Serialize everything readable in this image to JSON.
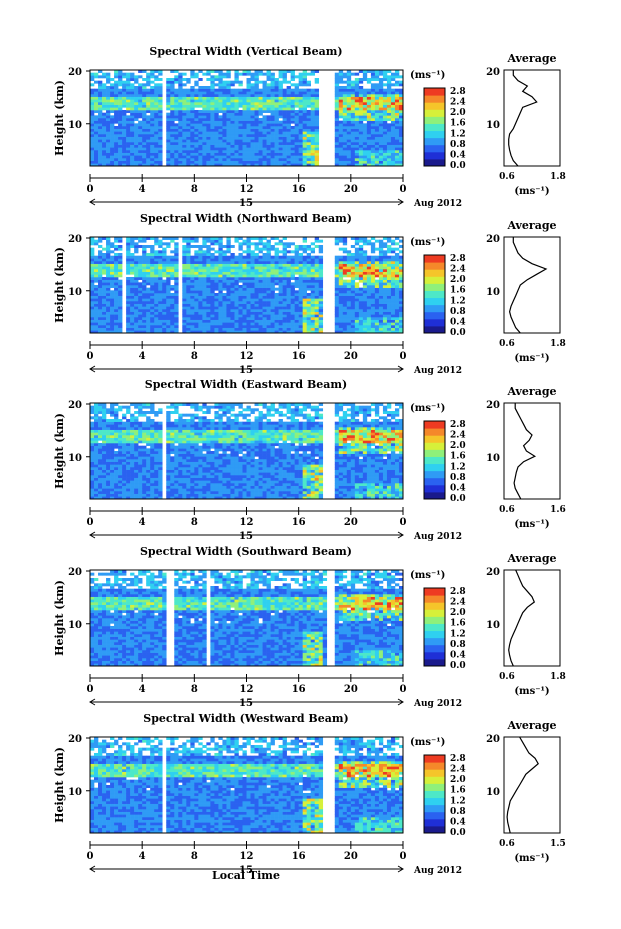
{
  "common": {
    "ylabel": "Height (km)",
    "cb_unit": "(ms⁻¹)",
    "cb_ticks": [
      "2.8",
      "2.4",
      "2.0",
      "1.6",
      "1.2",
      "0.8",
      "0.4",
      "0.0"
    ],
    "x_ticks": [
      "0",
      "4",
      "8",
      "12",
      "16",
      "20",
      "0"
    ],
    "y_ticks": [
      "20",
      "10"
    ],
    "day_label": "15",
    "month_label": "Aug 2012",
    "xlabel": "Local Time",
    "avg_title": "Average",
    "avg_unit": "(ms⁻¹)",
    "colors": [
      "#1a1a8c",
      "#1f2fd6",
      "#2a62f0",
      "#2f9bf5",
      "#2fd0f0",
      "#4de8c8",
      "#8ff07a",
      "#d6f03a",
      "#f5c52a",
      "#f5882a",
      "#ee3b22"
    ]
  },
  "chart_data": [
    {
      "type": "heatmap",
      "title": "Spectral Width (Vertical Beam)",
      "x_range_hours": [
        0,
        24
      ],
      "y_range_km": [
        2,
        20
      ],
      "avg_ticks": [
        "0.6",
        "1.8"
      ],
      "profile_height_km": [
        2,
        3,
        4,
        5,
        6,
        7,
        8,
        9,
        10,
        11,
        12,
        13,
        14,
        15,
        16,
        17,
        18,
        19,
        20
      ],
      "profile_mean_width_ms": [
        0.9,
        0.8,
        0.75,
        0.72,
        0.7,
        0.7,
        0.72,
        0.8,
        0.85,
        0.9,
        0.95,
        1.0,
        1.3,
        1.2,
        1.0,
        1.1,
        0.9,
        0.8,
        0.8
      ]
    },
    {
      "type": "heatmap",
      "title": "Spectral Width (Northward Beam)",
      "x_range_hours": [
        0,
        24
      ],
      "y_range_km": [
        2,
        20
      ],
      "avg_ticks": [
        "0.6",
        "1.8"
      ],
      "profile_height_km": [
        2,
        3,
        4,
        5,
        6,
        7,
        8,
        9,
        10,
        11,
        12,
        13,
        14,
        15,
        16,
        17,
        18,
        19,
        20
      ],
      "profile_mean_width_ms": [
        0.95,
        0.85,
        0.8,
        0.75,
        0.72,
        0.75,
        0.8,
        0.85,
        0.9,
        0.95,
        1.1,
        1.3,
        1.5,
        1.2,
        1.0,
        0.9,
        0.85,
        0.8,
        0.8
      ]
    },
    {
      "type": "heatmap",
      "title": "Spectral Width (Eastward Beam)",
      "x_range_hours": [
        0,
        24
      ],
      "y_range_km": [
        2,
        20
      ],
      "avg_ticks": [
        "0.6",
        "1.6"
      ],
      "profile_height_km": [
        2,
        3,
        4,
        5,
        6,
        7,
        8,
        9,
        10,
        11,
        12,
        13,
        14,
        15,
        16,
        17,
        18,
        19,
        20
      ],
      "profile_mean_width_ms": [
        0.9,
        0.85,
        0.8,
        0.78,
        0.8,
        0.82,
        0.85,
        0.95,
        1.15,
        1.0,
        0.95,
        1.05,
        1.1,
        1.0,
        0.95,
        0.9,
        0.85,
        0.8,
        0.8
      ]
    },
    {
      "type": "heatmap",
      "title": "Spectral Width (Southward Beam)",
      "x_range_hours": [
        0,
        24
      ],
      "y_range_km": [
        2,
        20
      ],
      "avg_ticks": [
        "0.6",
        "1.8"
      ],
      "profile_height_km": [
        2,
        3,
        4,
        5,
        6,
        7,
        8,
        9,
        10,
        11,
        12,
        13,
        14,
        15,
        16,
        17,
        18,
        19,
        20
      ],
      "profile_mean_width_ms": [
        0.8,
        0.75,
        0.72,
        0.7,
        0.72,
        0.75,
        0.8,
        0.85,
        0.9,
        0.95,
        1.0,
        1.1,
        1.25,
        1.2,
        1.1,
        1.0,
        0.95,
        0.9,
        0.85
      ]
    },
    {
      "type": "heatmap",
      "title": "Spectral Width (Westward Beam)",
      "x_range_hours": [
        0,
        24
      ],
      "y_range_km": [
        2,
        20
      ],
      "avg_ticks": [
        "0.6",
        "1.5"
      ],
      "profile_height_km": [
        2,
        3,
        4,
        5,
        6,
        7,
        8,
        9,
        10,
        11,
        12,
        13,
        14,
        15,
        16,
        17,
        18,
        19,
        20
      ],
      "profile_mean_width_ms": [
        0.7,
        0.68,
        0.66,
        0.65,
        0.66,
        0.68,
        0.7,
        0.75,
        0.8,
        0.85,
        0.9,
        0.95,
        1.05,
        1.15,
        1.1,
        1.0,
        0.95,
        0.9,
        0.85
      ]
    }
  ]
}
